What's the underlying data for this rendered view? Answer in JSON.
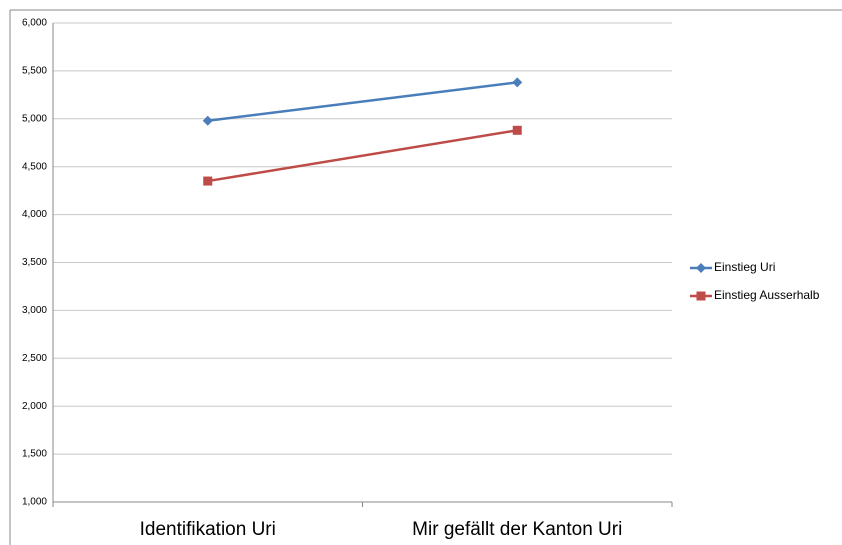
{
  "chart_data": {
    "type": "line",
    "categories": [
      "Identifikation Uri",
      "Mir gefällt der Kanton Uri"
    ],
    "series": [
      {
        "name": "Einstieg Uri",
        "color": "#4a7ebb",
        "marker": "diamond",
        "values": [
          4.98,
          5.38
        ]
      },
      {
        "name": "Einstieg Ausserhalb",
        "color": "#be4b48",
        "marker": "square",
        "values": [
          4.35,
          4.88
        ]
      }
    ],
    "ylim": [
      1,
      6
    ],
    "yticks": [
      {
        "value": 1,
        "label": "1,000"
      },
      {
        "value": 1.5,
        "label": "1,500"
      },
      {
        "value": 2,
        "label": "2,000"
      },
      {
        "value": 2.5,
        "label": "2,500"
      },
      {
        "value": 3,
        "label": "3,000"
      },
      {
        "value": 3.5,
        "label": "3,500"
      },
      {
        "value": 4,
        "label": "4,000"
      },
      {
        "value": 4.5,
        "label": "4,500"
      },
      {
        "value": 5,
        "label": "5,000"
      },
      {
        "value": 5.5,
        "label": "5,500"
      },
      {
        "value": 6,
        "label": "6,000"
      }
    ],
    "grid": true,
    "legend": "right"
  }
}
